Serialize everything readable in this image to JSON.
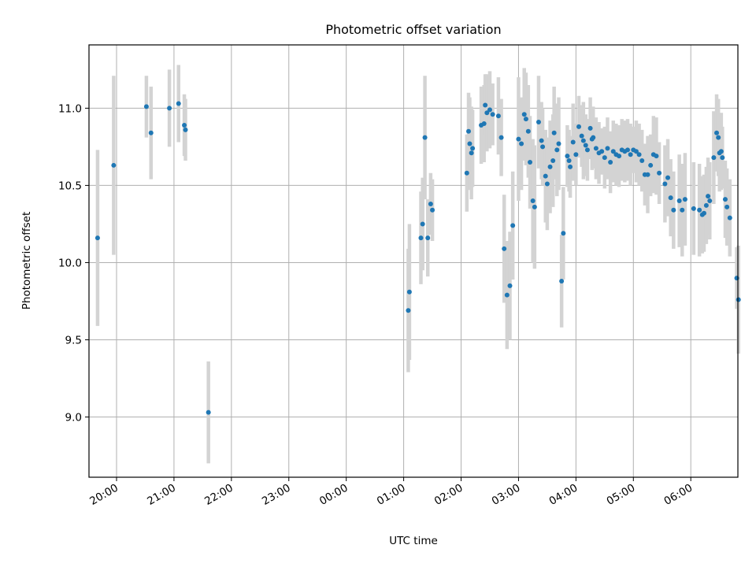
{
  "chart_data": {
    "type": "scatter",
    "title": "Photometric offset variation",
    "xlabel": "UTC time",
    "ylabel": "Photometric offset",
    "grid": true,
    "x_unit": "hours since 19:00 UTC",
    "xlim": [
      19.52,
      30.82
    ],
    "ylim": [
      8.61,
      11.41
    ],
    "xticks": [
      {
        "value": 20.0,
        "label": "20:00"
      },
      {
        "value": 21.0,
        "label": "21:00"
      },
      {
        "value": 22.0,
        "label": "22:00"
      },
      {
        "value": 23.0,
        "label": "23:00"
      },
      {
        "value": 24.0,
        "label": "00:00"
      },
      {
        "value": 25.0,
        "label": "01:00"
      },
      {
        "value": 26.0,
        "label": "02:00"
      },
      {
        "value": 27.0,
        "label": "03:00"
      },
      {
        "value": 28.0,
        "label": "04:00"
      },
      {
        "value": 29.0,
        "label": "05:00"
      },
      {
        "value": 30.0,
        "label": "06:00"
      }
    ],
    "yticks": [
      {
        "value": 9.0,
        "label": "9.0"
      },
      {
        "value": 9.5,
        "label": "9.5"
      },
      {
        "value": 10.0,
        "label": "10.0"
      },
      {
        "value": 10.5,
        "label": "10.5"
      },
      {
        "value": 11.0,
        "label": "11.0"
      }
    ],
    "colors": {
      "point": "#1f77b4",
      "errorbar": "#d3d3d3",
      "grid": "#b0b0b0",
      "axes": "#000000"
    },
    "series": [
      {
        "name": "offset",
        "points": [
          [
            19.67,
            10.16,
            0.57
          ],
          [
            19.95,
            10.63,
            0.58
          ],
          [
            20.52,
            11.01,
            0.2
          ],
          [
            20.6,
            10.84,
            0.3
          ],
          [
            20.92,
            11.0,
            0.25
          ],
          [
            21.08,
            11.03,
            0.25
          ],
          [
            21.18,
            10.89,
            0.2
          ],
          [
            21.2,
            10.86,
            0.2
          ],
          [
            21.6,
            9.03,
            0.33
          ],
          [
            25.08,
            9.69,
            0.4
          ],
          [
            25.1,
            9.81,
            0.44
          ],
          [
            25.3,
            10.16,
            0.3
          ],
          [
            25.33,
            10.25,
            0.3
          ],
          [
            25.37,
            10.81,
            0.4
          ],
          [
            25.42,
            10.16,
            0.25
          ],
          [
            25.47,
            10.38,
            0.2
          ],
          [
            25.5,
            10.34,
            0.2
          ],
          [
            26.1,
            10.58,
            0.25
          ],
          [
            26.13,
            10.85,
            0.25
          ],
          [
            26.15,
            10.77,
            0.3
          ],
          [
            26.18,
            10.71,
            0.3
          ],
          [
            26.2,
            10.74,
            0.25
          ],
          [
            26.35,
            10.89,
            0.25
          ],
          [
            26.4,
            10.9,
            0.25
          ],
          [
            26.42,
            11.02,
            0.2
          ],
          [
            26.45,
            10.97,
            0.25
          ],
          [
            26.5,
            10.99,
            0.25
          ],
          [
            26.55,
            10.96,
            0.2
          ],
          [
            26.65,
            10.95,
            0.25
          ],
          [
            26.7,
            10.81,
            0.25
          ],
          [
            26.75,
            10.09,
            0.35
          ],
          [
            26.8,
            9.79,
            0.35
          ],
          [
            26.85,
            9.85,
            0.35
          ],
          [
            26.9,
            10.24,
            0.35
          ],
          [
            27.0,
            10.8,
            0.4
          ],
          [
            27.05,
            10.77,
            0.3
          ],
          [
            27.1,
            10.96,
            0.3
          ],
          [
            27.13,
            10.93,
            0.3
          ],
          [
            27.17,
            10.85,
            0.3
          ],
          [
            27.2,
            10.65,
            0.3
          ],
          [
            27.25,
            10.4,
            0.4
          ],
          [
            27.28,
            10.36,
            0.4
          ],
          [
            27.35,
            10.91,
            0.3
          ],
          [
            27.4,
            10.79,
            0.25
          ],
          [
            27.42,
            10.75,
            0.25
          ],
          [
            27.47,
            10.56,
            0.3
          ],
          [
            27.5,
            10.51,
            0.3
          ],
          [
            27.55,
            10.62,
            0.3
          ],
          [
            27.6,
            10.66,
            0.3
          ],
          [
            27.62,
            10.84,
            0.3
          ],
          [
            27.67,
            10.73,
            0.3
          ],
          [
            27.7,
            10.77,
            0.3
          ],
          [
            27.75,
            9.88,
            0.3
          ],
          [
            27.78,
            10.19,
            0.3
          ],
          [
            27.85,
            10.69,
            0.2
          ],
          [
            27.88,
            10.66,
            0.2
          ],
          [
            27.9,
            10.62,
            0.2
          ],
          [
            27.95,
            10.78,
            0.25
          ],
          [
            28.0,
            10.7,
            0.2
          ],
          [
            28.05,
            10.88,
            0.2
          ],
          [
            28.1,
            10.82,
            0.2
          ],
          [
            28.13,
            10.79,
            0.25
          ],
          [
            28.17,
            10.76,
            0.2
          ],
          [
            28.2,
            10.73,
            0.2
          ],
          [
            28.25,
            10.87,
            0.2
          ],
          [
            28.28,
            10.8,
            0.2
          ],
          [
            28.3,
            10.81,
            0.2
          ],
          [
            28.35,
            10.74,
            0.2
          ],
          [
            28.4,
            10.71,
            0.2
          ],
          [
            28.45,
            10.72,
            0.15
          ],
          [
            28.5,
            10.68,
            0.2
          ],
          [
            28.55,
            10.74,
            0.2
          ],
          [
            28.6,
            10.65,
            0.2
          ],
          [
            28.65,
            10.72,
            0.2
          ],
          [
            28.7,
            10.7,
            0.2
          ],
          [
            28.75,
            10.69,
            0.2
          ],
          [
            28.8,
            10.73,
            0.2
          ],
          [
            28.85,
            10.72,
            0.2
          ],
          [
            28.9,
            10.73,
            0.2
          ],
          [
            28.95,
            10.7,
            0.2
          ],
          [
            29.0,
            10.73,
            0.15
          ],
          [
            29.05,
            10.72,
            0.2
          ],
          [
            29.1,
            10.7,
            0.2
          ],
          [
            29.15,
            10.66,
            0.2
          ],
          [
            29.2,
            10.57,
            0.2
          ],
          [
            29.25,
            10.57,
            0.25
          ],
          [
            29.3,
            10.63,
            0.2
          ],
          [
            29.35,
            10.7,
            0.25
          ],
          [
            29.4,
            10.69,
            0.25
          ],
          [
            29.45,
            10.58,
            0.2
          ],
          [
            29.55,
            10.51,
            0.25
          ],
          [
            29.6,
            10.55,
            0.25
          ],
          [
            29.65,
            10.42,
            0.25
          ],
          [
            29.7,
            10.34,
            0.25
          ],
          [
            29.8,
            10.4,
            0.3
          ],
          [
            29.85,
            10.34,
            0.3
          ],
          [
            29.9,
            10.41,
            0.3
          ],
          [
            30.05,
            10.35,
            0.3
          ],
          [
            30.15,
            10.34,
            0.3
          ],
          [
            30.2,
            10.31,
            0.25
          ],
          [
            30.23,
            10.32,
            0.25
          ],
          [
            30.27,
            10.37,
            0.25
          ],
          [
            30.3,
            10.43,
            0.25
          ],
          [
            30.33,
            10.4,
            0.25
          ],
          [
            30.4,
            10.68,
            0.3
          ],
          [
            30.45,
            10.84,
            0.25
          ],
          [
            30.48,
            10.81,
            0.25
          ],
          [
            30.5,
            10.71,
            0.25
          ],
          [
            30.53,
            10.72,
            0.25
          ],
          [
            30.55,
            10.68,
            0.2
          ],
          [
            30.6,
            10.41,
            0.25
          ],
          [
            30.63,
            10.36,
            0.25
          ],
          [
            30.68,
            10.29,
            0.25
          ],
          [
            30.8,
            9.9,
            0.2
          ],
          [
            30.83,
            9.76,
            0.35
          ]
        ]
      }
    ]
  }
}
